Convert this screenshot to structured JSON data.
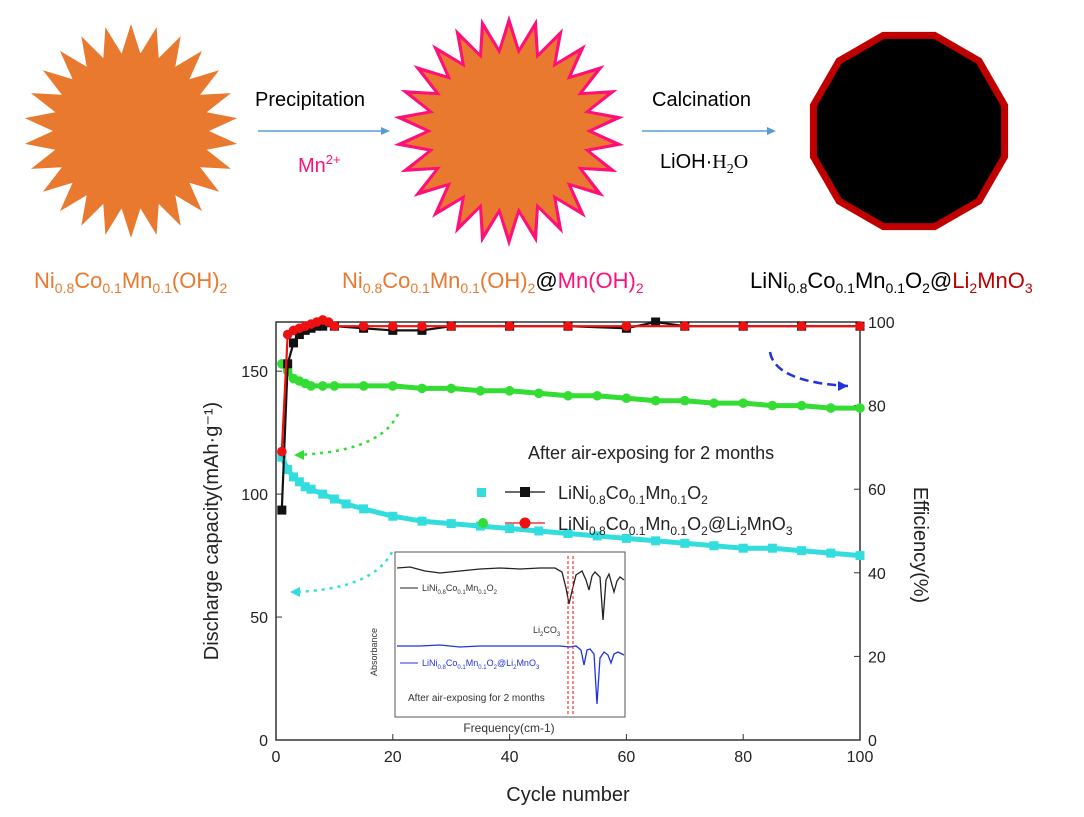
{
  "scheme": {
    "step1_label": "Precipitation",
    "step1_reagent_base": "Mn",
    "step1_reagent_sup": "2+",
    "step2_label": "Calcination",
    "step2_reagent_a": "LiOH",
    "step2_reagent_dot": "·",
    "step2_reagent_b": "H",
    "step2_reagent_sub": "2",
    "step2_reagent_c": "O",
    "material1": [
      "Ni",
      "0.8",
      "Co",
      "0.1",
      "Mn",
      "0.1",
      "(OH)",
      "2"
    ],
    "material2": [
      "Ni",
      "0.8",
      "Co",
      "0.1",
      "Mn",
      "0.1",
      "(OH)",
      "2",
      "@",
      "Mn(OH)",
      "2"
    ],
    "material3": [
      "LiNi",
      "0.8",
      "Co",
      "0.1",
      "Mn",
      "0.1",
      "O",
      "2",
      "@",
      "Li",
      "2",
      "MnO",
      "3"
    ],
    "colors": {
      "orange": "#e8792f",
      "pink": "#ff0f78",
      "dark_red": "#c00000",
      "arrow": "#5b9bd5"
    },
    "icons": [
      "orange-sun-particle-icon",
      "pink-outlined-sun-particle-icon",
      "black-dodecagon-particle-icon",
      "right-arrow-icon"
    ]
  },
  "chart_data": {
    "type": "scatter",
    "xlabel": "Cycle number",
    "ylabel": "Discharge capacity(mAh·g⁻¹)",
    "ylabel_right": "Efficiency(%)",
    "xlim": [
      0,
      100
    ],
    "ylim": [
      0,
      170
    ],
    "ylim_right": [
      0,
      100
    ],
    "xticks": [
      0,
      20,
      40,
      60,
      80,
      100
    ],
    "yticks": [
      0,
      50,
      100,
      150
    ],
    "yticks_right": [
      0,
      20,
      40,
      60,
      80,
      100
    ],
    "annotation": "After air-exposing for 2 months",
    "legend": {
      "placement": "center-right",
      "entries": [
        {
          "parts": [
            "LiNi",
            "0.8",
            "Co",
            "0.1",
            "Mn",
            "0.1",
            "O",
            "2"
          ],
          "capacity_color": "#33dddd",
          "efficiency_color": "#111111"
        },
        {
          "parts": [
            "LiNi",
            "0.8",
            "Co",
            "0.1",
            "Mn",
            "0.1",
            "O",
            "2",
            "@Li",
            "2",
            "MnO",
            "3"
          ],
          "capacity_color": "#33dd33",
          "efficiency_color": "#ee1111"
        }
      ]
    },
    "series": [
      {
        "axis": "left",
        "marker": "square",
        "color": "#33dddd",
        "x": [
          1,
          2,
          3,
          4,
          5,
          6,
          8,
          10,
          12,
          15,
          20,
          25,
          30,
          35,
          40,
          45,
          50,
          55,
          60,
          65,
          70,
          75,
          80,
          85,
          90,
          95,
          100
        ],
        "y": [
          115,
          110,
          107,
          105,
          103,
          102,
          100,
          98,
          96,
          94,
          91,
          89,
          88,
          87,
          86,
          85,
          84,
          83,
          82,
          81,
          80,
          79,
          78,
          78,
          77,
          76,
          75
        ]
      },
      {
        "axis": "left",
        "marker": "circle",
        "color": "#33dd33",
        "x": [
          1,
          2,
          3,
          4,
          5,
          6,
          8,
          10,
          15,
          20,
          25,
          30,
          35,
          40,
          45,
          50,
          55,
          60,
          65,
          70,
          75,
          80,
          85,
          90,
          95,
          100
        ],
        "y": [
          153,
          150,
          147,
          146,
          145,
          144,
          144,
          144,
          144,
          144,
          143,
          143,
          142,
          142,
          141,
          140,
          140,
          139,
          138,
          138,
          137,
          137,
          136,
          136,
          135,
          135
        ]
      },
      {
        "axis": "right",
        "marker": "square",
        "color": "#111111",
        "x": [
          1,
          2,
          3,
          4,
          5,
          6,
          7,
          8,
          10,
          15,
          20,
          25,
          30,
          40,
          50,
          60,
          65,
          70,
          80,
          90,
          100
        ],
        "y": [
          55,
          90,
          95,
          97,
          98,
          98.5,
          99,
          99,
          99,
          98.5,
          98,
          98,
          99,
          99,
          99,
          98.5,
          100,
          99,
          99,
          99,
          99
        ]
      },
      {
        "axis": "right",
        "marker": "circle",
        "color": "#ee1111",
        "x": [
          1,
          2,
          3,
          4,
          5,
          6,
          7,
          8,
          9,
          10,
          15,
          20,
          25,
          30,
          40,
          50,
          60,
          70,
          80,
          90,
          100
        ],
        "y": [
          69,
          97,
          98,
          98.5,
          99,
          99.5,
          100,
          100.5,
          100,
          99,
          99,
          99,
          99,
          99,
          99,
          99,
          99,
          99,
          99,
          99,
          99
        ]
      }
    ],
    "arrows": [
      {
        "color": "#2233dd",
        "style": "dashed",
        "points_to": "right-axis"
      },
      {
        "color": "#33dd33",
        "style": "dotted",
        "points_to": "left-axis"
      },
      {
        "color": "#33dddd",
        "style": "dotted",
        "points_to": "left-axis"
      }
    ],
    "inset": {
      "type": "line",
      "xlabel": "Frequency(cm-1)",
      "ylabel": "Absorbance",
      "peak_label_base": "Li",
      "peak_label_sub": "2",
      "peak_label_tail": "CO",
      "peak_label_sub2": "3",
      "annotation": "After air-exposing for 2 months",
      "series": [
        {
          "parts": [
            "LiNi",
            "0.8",
            "Co",
            "0.1",
            "Mn",
            "0.1",
            "O",
            "2"
          ],
          "color": "#222222"
        },
        {
          "parts": [
            "LiNi",
            "0.8",
            "Co",
            "0.1",
            "Mn",
            "0.1",
            "O",
            "2",
            "@Li",
            "2",
            "MnO",
            "3"
          ],
          "color": "#2233dd"
        }
      ]
    }
  }
}
